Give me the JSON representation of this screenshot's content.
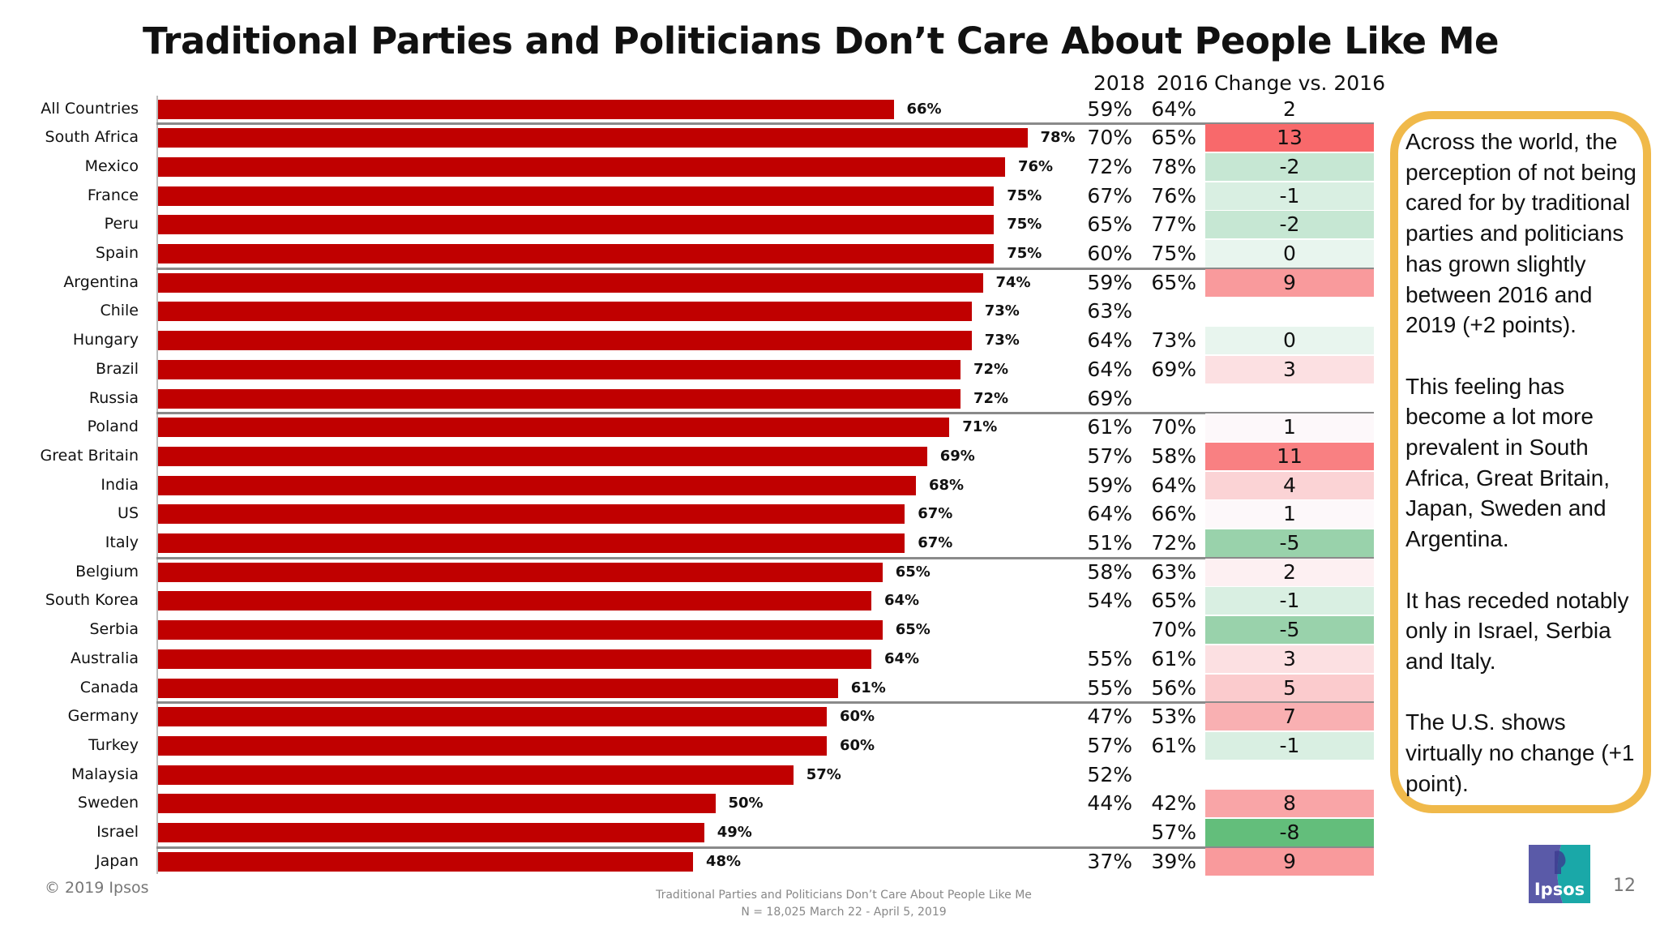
{
  "title": "Traditional Parties and Politicians Don’t Care About People Like Me",
  "headers": {
    "y2018": "2018",
    "y2016": "2016",
    "change": "Change vs. 2016"
  },
  "chart_data": {
    "type": "bar",
    "orientation": "horizontal",
    "title": "Traditional Parties and Politicians Don’t Care About People Like Me",
    "xlim": [
      0,
      100
    ],
    "bar_color": "#c00000",
    "categories": [
      "All Countries",
      "South Africa",
      "Mexico",
      "France",
      "Peru",
      "Spain",
      "Argentina",
      "Chile",
      "Hungary",
      "Brazil",
      "Russia",
      "Poland",
      "Great Britain",
      "India",
      "US",
      "Italy",
      "Belgium",
      "South Korea",
      "Serbia",
      "Australia",
      "Canada",
      "Germany",
      "Turkey",
      "Malaysia",
      "Sweden",
      "Israel",
      "Japan"
    ],
    "values": [
      66,
      78,
      76,
      75,
      75,
      75,
      74,
      73,
      73,
      72,
      72,
      71,
      69,
      68,
      67,
      67,
      65,
      64,
      65,
      64,
      61,
      60,
      60,
      57,
      50,
      49,
      48
    ],
    "value_labels": [
      "66%",
      "78%",
      "76%",
      "75%",
      "75%",
      "75%",
      "74%",
      "73%",
      "73%",
      "72%",
      "72%",
      "71%",
      "69%",
      "68%",
      "67%",
      "67%",
      "65%",
      "64%",
      "65%",
      "64%",
      "61%",
      "60%",
      "60%",
      "57%",
      "50%",
      "49%",
      "48%"
    ],
    "y2018": [
      "59%",
      "70%",
      "72%",
      "67%",
      "65%",
      "60%",
      "59%",
      "63%",
      "64%",
      "64%",
      "69%",
      "61%",
      "57%",
      "59%",
      "64%",
      "51%",
      "58%",
      "54%",
      "",
      "55%",
      "55%",
      "47%",
      "57%",
      "52%",
      "44%",
      "",
      "37%"
    ],
    "y2016": [
      "64%",
      "65%",
      "78%",
      "76%",
      "77%",
      "75%",
      "65%",
      "",
      "73%",
      "69%",
      "",
      "70%",
      "58%",
      "64%",
      "66%",
      "72%",
      "63%",
      "65%",
      "70%",
      "61%",
      "56%",
      "53%",
      "61%",
      "",
      "42%",
      "57%",
      "39%"
    ],
    "change": [
      "2",
      "13",
      "-2",
      "-1",
      "-2",
      "0",
      "9",
      "",
      "0",
      "3",
      "",
      "1",
      "11",
      "4",
      "1",
      "-5",
      "2",
      "-1",
      "-5",
      "3",
      "5",
      "7",
      "-1",
      "",
      "8",
      "-8",
      "9"
    ],
    "change_colors": [
      "#ffffff",
      "#f8696b",
      "#c6e7d3",
      "#d9efe2",
      "#c6e7d3",
      "#e8f5ee",
      "#f99a9c",
      "#ffffff",
      "#e8f5ee",
      "#fce0e2",
      "#ffffff",
      "#fdf8fa",
      "#f98082",
      "#fbd3d5",
      "#fdf8fa",
      "#99d2ab",
      "#fdf0f2",
      "#d9efe2",
      "#99d2ab",
      "#fce0e2",
      "#fbcbcd",
      "#f9b0b2",
      "#d9efe2",
      "#ffffff",
      "#f9a5a7",
      "#63be7b",
      "#f99a9c"
    ],
    "group_separators_after": [
      "All Countries",
      "Spain",
      "Russia",
      "Italy",
      "Canada",
      "Israel"
    ]
  },
  "note": {
    "paragraphs": [
      "Across the world, the perception of not being cared for by traditional parties and politicians has grown slightly between 2016 and 2019 (+2 points).",
      "This feeling has become a lot more prevalent in South Africa, Great Britain, Japan, Sweden and Argentina.",
      "It has receded notably only in Israel, Serbia and Italy.",
      "The U.S. shows virtually no change (+1 point)."
    ],
    "border_color": "#f0b94a"
  },
  "footer": {
    "copyright": "© 2019 Ipsos",
    "line1": "Traditional Parties and Politicians Don’t Care About People Like Me",
    "line2": "N = 18,025  March 22 - April 5, 2019",
    "page": "12",
    "logo_text": "Ipsos"
  }
}
